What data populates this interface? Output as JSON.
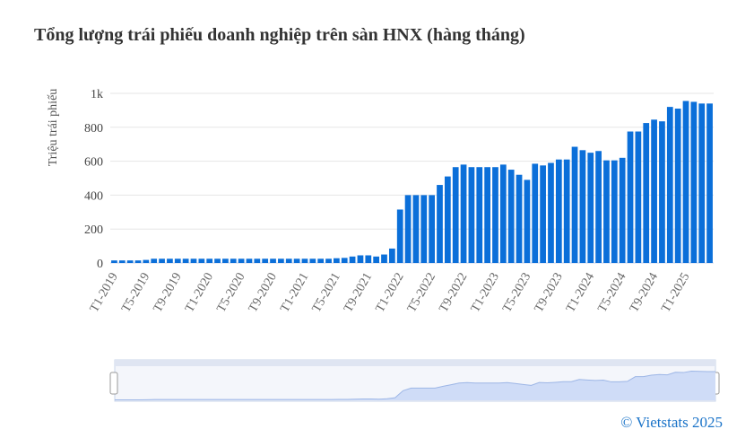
{
  "chart_data": {
    "type": "bar",
    "title": "Tổng lượng trái phiếu doanh nghiệp trên sàn HNX (hàng tháng)",
    "y_label": "Triệu trái phiếu",
    "credit": "© Vietstats 2025",
    "color": "#0b6fd9",
    "grid": true,
    "categories": [
      "T1-2019",
      null,
      null,
      null,
      "T5-2019",
      null,
      null,
      null,
      "T9-2019",
      null,
      null,
      null,
      "T1-2020",
      null,
      null,
      null,
      "T5-2020",
      null,
      null,
      null,
      "T9-2020",
      null,
      null,
      null,
      "T1-2021",
      null,
      null,
      null,
      "T5-2021",
      null,
      null,
      null,
      "T9-2021",
      null,
      null,
      null,
      "T1-2022",
      null,
      null,
      null,
      "T5-2022",
      null,
      null,
      null,
      "T9-2022",
      null,
      null,
      null,
      "T1-2023",
      null,
      null,
      null,
      "T5-2023",
      null,
      null,
      null,
      "T9-2023",
      null,
      null,
      null,
      "T1-2024",
      null,
      null,
      null,
      "T5-2024",
      null,
      null,
      null,
      "T9-2024",
      null,
      null,
      null,
      "T1-2025",
      null,
      null,
      null
    ],
    "values": [
      15,
      15,
      15,
      15,
      18,
      25,
      25,
      25,
      25,
      25,
      25,
      25,
      25,
      25,
      25,
      25,
      25,
      25,
      25,
      25,
      25,
      25,
      25,
      25,
      25,
      25,
      25,
      25,
      28,
      30,
      38,
      45,
      45,
      38,
      50,
      85,
      315,
      400,
      400,
      400,
      400,
      460,
      510,
      565,
      580,
      565,
      565,
      565,
      565,
      580,
      550,
      520,
      490,
      585,
      575,
      590,
      610,
      610,
      685,
      665,
      650,
      660,
      605,
      605,
      620,
      775,
      775,
      825,
      845,
      835,
      920,
      910,
      955,
      950,
      940,
      940
    ],
    "ylim": [
      0,
      1000
    ],
    "yticks": [
      0,
      200,
      400,
      600,
      800,
      {
        "value": 1000,
        "label": "1k"
      }
    ]
  }
}
